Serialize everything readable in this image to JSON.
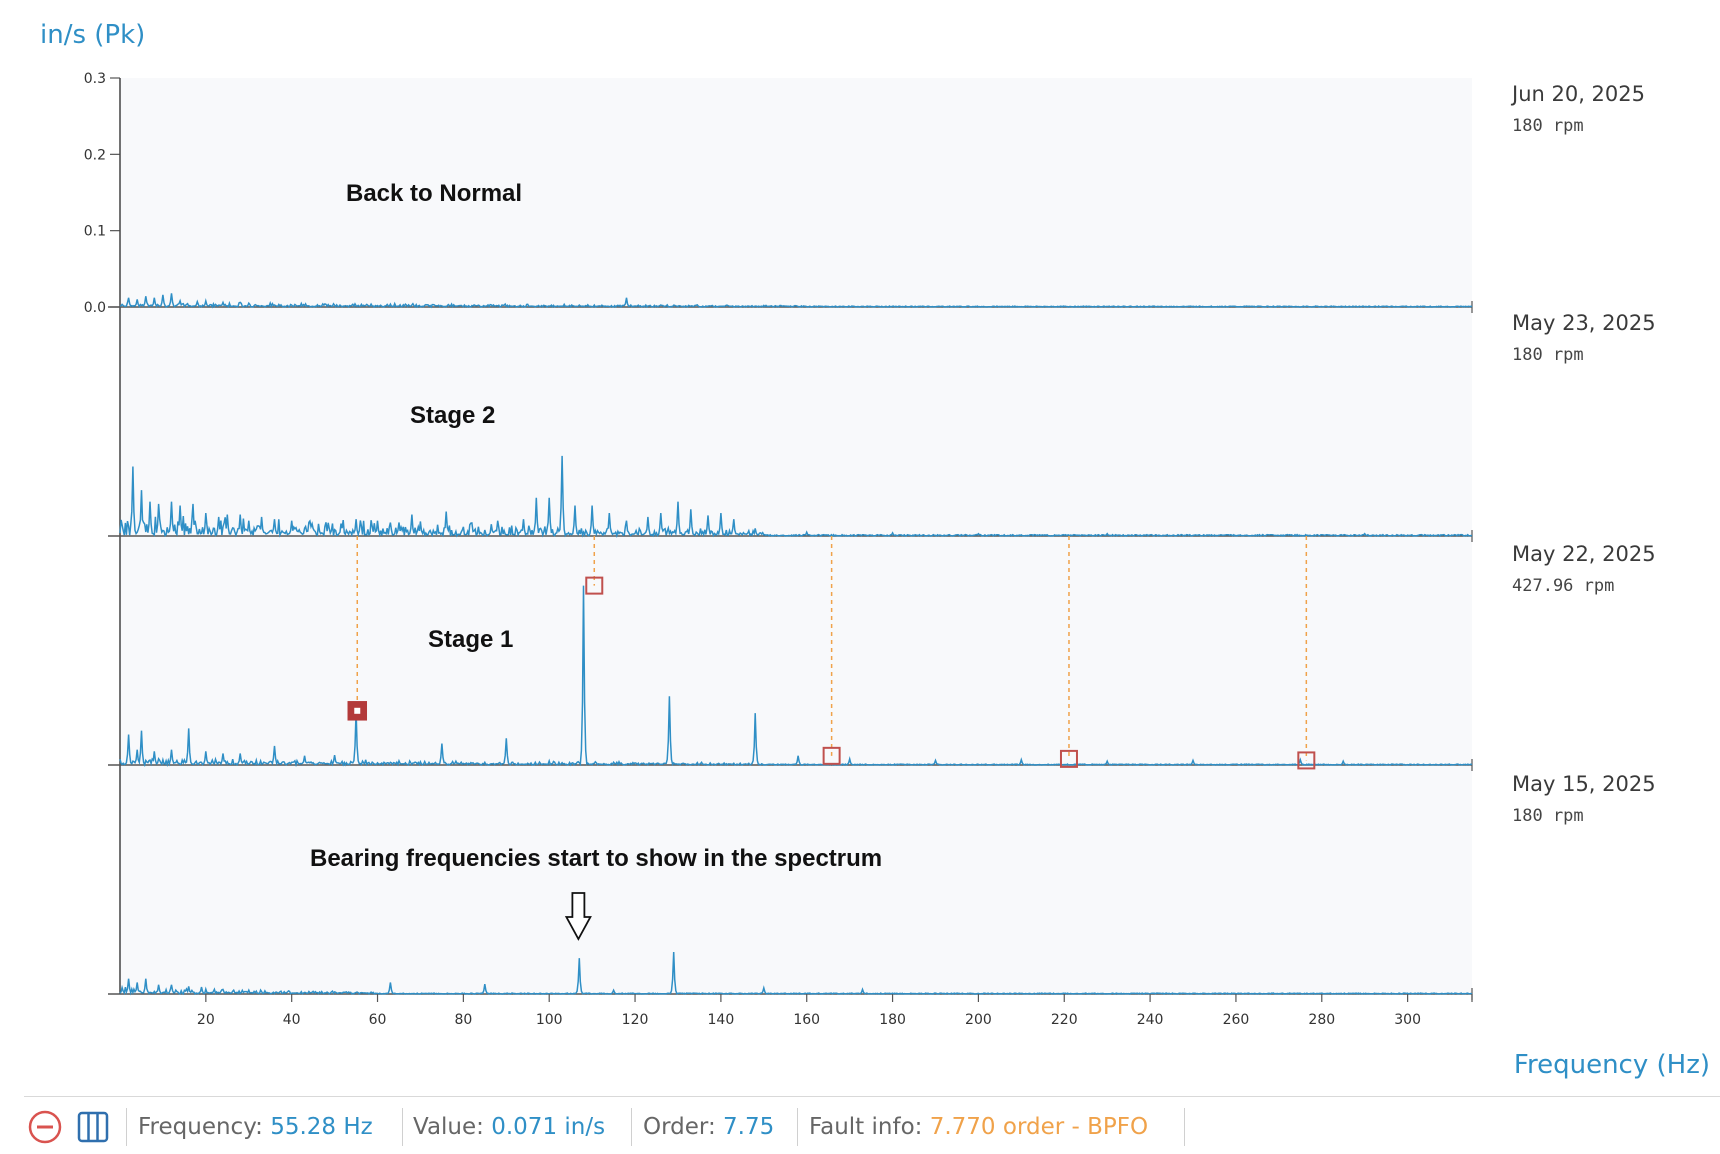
{
  "chart_data": {
    "type": "line",
    "ylabel": "in/s (Pk)",
    "xlabel": "Frequency (Hz)",
    "y_ticks": [
      "0.3",
      "0.2",
      "0.1",
      "0.0"
    ],
    "ylim": [
      0,
      0.3
    ],
    "xlim": [
      0,
      315
    ],
    "x_ticks": [
      "20",
      "40",
      "60",
      "80",
      "100",
      "120",
      "140",
      "160",
      "180",
      "200",
      "220",
      "240",
      "260",
      "280",
      "300"
    ],
    "panels": [
      {
        "date": "Jun 20, 2025",
        "rpm": "180 rpm",
        "annotation": "Back to Normal",
        "peaks": [
          [
            2,
            0.012
          ],
          [
            4,
            0.01
          ],
          [
            6,
            0.014
          ],
          [
            8,
            0.012
          ],
          [
            10,
            0.016
          ],
          [
            12,
            0.018
          ],
          [
            14,
            0.008
          ],
          [
            18,
            0.007
          ],
          [
            20,
            0.008
          ],
          [
            24,
            0.006
          ],
          [
            28,
            0.006
          ],
          [
            30,
            0.005
          ],
          [
            118,
            0.012
          ]
        ]
      },
      {
        "date": "May 23, 2025",
        "rpm": "180 rpm",
        "annotation": "Stage 2",
        "peaks": [
          [
            3,
            0.091
          ],
          [
            5,
            0.06
          ],
          [
            7,
            0.045
          ],
          [
            9,
            0.042
          ],
          [
            12,
            0.045
          ],
          [
            14,
            0.04
          ],
          [
            17,
            0.042
          ],
          [
            20,
            0.03
          ],
          [
            23,
            0.025
          ],
          [
            25,
            0.028
          ],
          [
            28,
            0.028
          ],
          [
            30,
            0.02
          ],
          [
            33,
            0.025
          ],
          [
            36,
            0.022
          ],
          [
            40,
            0.02
          ],
          [
            44,
            0.018
          ],
          [
            48,
            0.018
          ],
          [
            55,
            0.022
          ],
          [
            60,
            0.02
          ],
          [
            65,
            0.015
          ],
          [
            68,
            0.028
          ],
          [
            70,
            0.019
          ],
          [
            76,
            0.032
          ],
          [
            82,
            0.017
          ],
          [
            88,
            0.02
          ],
          [
            94,
            0.022
          ],
          [
            97,
            0.05
          ],
          [
            100,
            0.05
          ],
          [
            103,
            0.105
          ],
          [
            106,
            0.04
          ],
          [
            110,
            0.04
          ],
          [
            114,
            0.03
          ],
          [
            118,
            0.02
          ],
          [
            123,
            0.025
          ],
          [
            126,
            0.03
          ],
          [
            130,
            0.045
          ],
          [
            133,
            0.035
          ],
          [
            137,
            0.027
          ],
          [
            140,
            0.03
          ],
          [
            143,
            0.022
          ],
          [
            148,
            0.01
          ],
          [
            160,
            0.005
          ],
          [
            180,
            0.004
          ],
          [
            200,
            0.003
          ],
          [
            230,
            0.003
          ],
          [
            290,
            0.003
          ]
        ]
      },
      {
        "date": "May 22, 2025",
        "rpm": "427.96 rpm",
        "annotation": "Stage 1",
        "peaks": [
          [
            2,
            0.04
          ],
          [
            4,
            0.02
          ],
          [
            5,
            0.045
          ],
          [
            8,
            0.018
          ],
          [
            12,
            0.02
          ],
          [
            16,
            0.048
          ],
          [
            20,
            0.018
          ],
          [
            24,
            0.015
          ],
          [
            28,
            0.015
          ],
          [
            36,
            0.025
          ],
          [
            43,
            0.012
          ],
          [
            50,
            0.013
          ],
          [
            55,
            0.071
          ],
          [
            75,
            0.028
          ],
          [
            90,
            0.035
          ],
          [
            108,
            0.235
          ],
          [
            128,
            0.09
          ],
          [
            148,
            0.068
          ],
          [
            158,
            0.012
          ],
          [
            170,
            0.008
          ],
          [
            190,
            0.006
          ],
          [
            210,
            0.007
          ],
          [
            230,
            0.005
          ],
          [
            250,
            0.006
          ],
          [
            275,
            0.007
          ],
          [
            285,
            0.005
          ]
        ],
        "fault_markers": [
          [
            55.28,
            0.071
          ],
          [
            110.5,
            0.235
          ],
          [
            165.8,
            0.012
          ],
          [
            221.1,
            0.008
          ],
          [
            276.4,
            0.006
          ]
        ]
      },
      {
        "date": "May 15, 2025",
        "rpm": "180 rpm",
        "annotation": "Bearing frequencies start to show in the spectrum",
        "peaks": [
          [
            2,
            0.02
          ],
          [
            4,
            0.015
          ],
          [
            6,
            0.02
          ],
          [
            9,
            0.012
          ],
          [
            12,
            0.012
          ],
          [
            16,
            0.01
          ],
          [
            19,
            0.009
          ],
          [
            24,
            0.006
          ],
          [
            30,
            0.005
          ],
          [
            63,
            0.015
          ],
          [
            85,
            0.013
          ],
          [
            107,
            0.047
          ],
          [
            115,
            0.005
          ],
          [
            129,
            0.055
          ],
          [
            150,
            0.008
          ],
          [
            173,
            0.006
          ]
        ]
      }
    ]
  },
  "status": {
    "frequency_label": "Frequency:",
    "frequency_value": "55.28 Hz",
    "value_label": "Value:",
    "value_value": "0.071 in/s",
    "order_label": "Order:",
    "order_value": "7.75",
    "fault_label": "Fault info:",
    "fault_value": "7.770 order",
    "fault_sep": " - ",
    "fault_type": "BPFO"
  }
}
